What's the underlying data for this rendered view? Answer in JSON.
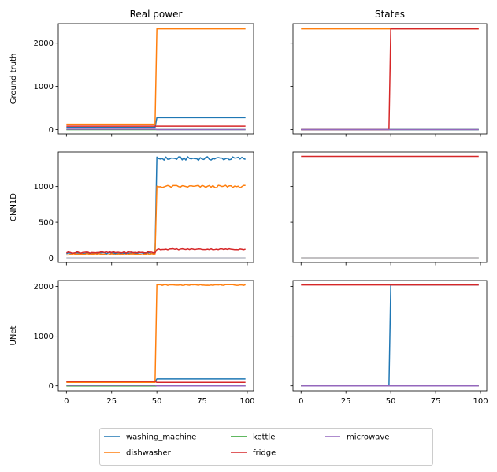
{
  "chart_data": {
    "type": "line",
    "columns": [
      "Real power",
      "States"
    ],
    "rows": [
      "Ground truth",
      "CNN1D",
      "UNet"
    ],
    "x": {
      "start": 0,
      "end": 99,
      "switch_at": 50
    },
    "xlim": [
      -4.5,
      103.5
    ],
    "xticks": [
      0,
      25,
      50,
      75,
      100
    ],
    "legend_position": "lower-center",
    "series": [
      {
        "name": "washing_machine",
        "color": "#1f77b4"
      },
      {
        "name": "dishwasher",
        "color": "#ff7f0e"
      },
      {
        "name": "kettle",
        "color": "#2ca02c"
      },
      {
        "name": "fridge",
        "color": "#d62728"
      },
      {
        "name": "microwave",
        "color": "#9467bd"
      }
    ],
    "panels": {
      "Ground truth": {
        "ylim": [
          -100,
          2450
        ],
        "yticks": [
          0,
          1000,
          2000
        ],
        "real_power": {
          "washing_machine": [
            50,
            275
          ],
          "dishwasher": [
            125,
            2330
          ],
          "kettle": [
            0,
            0
          ],
          "fridge": [
            80,
            80
          ],
          "microwave": [
            10,
            0
          ]
        },
        "states_level": 2330,
        "states": {
          "washing_machine": [
            0,
            0
          ],
          "dishwasher": [
            1,
            1
          ],
          "kettle": [
            0,
            0
          ],
          "fridge": [
            0,
            1
          ],
          "microwave": [
            0,
            0
          ]
        }
      },
      "CNN1D": {
        "ylim": [
          -60,
          1480
        ],
        "yticks": [
          0,
          500,
          1000
        ],
        "real_power": {
          "washing_machine": [
            70,
            1390
          ],
          "dishwasher": [
            55,
            1000
          ],
          "kettle": [
            0,
            0
          ],
          "fridge": [
            80,
            125
          ],
          "microwave": [
            0,
            0
          ]
        },
        "states_level": 1420,
        "states": {
          "washing_machine": [
            0,
            0
          ],
          "dishwasher": [
            0,
            0
          ],
          "kettle": [
            0,
            0
          ],
          "fridge": [
            1,
            1
          ],
          "microwave": [
            0,
            0
          ]
        }
      },
      "UNet": {
        "ylim": [
          -100,
          2120
        ],
        "yticks": [
          0,
          1000,
          2000
        ],
        "real_power": {
          "washing_machine": [
            80,
            140
          ],
          "dishwasher": [
            70,
            2030
          ],
          "kettle": [
            0,
            0
          ],
          "fridge": [
            90,
            70
          ],
          "microwave": [
            10,
            0
          ]
        },
        "states_level": 2030,
        "states": {
          "washing_machine": [
            0,
            1
          ],
          "dishwasher": [
            0,
            0
          ],
          "kettle": [
            0,
            0
          ],
          "fridge": [
            1,
            1
          ],
          "microwave": [
            0,
            0
          ]
        }
      }
    }
  }
}
